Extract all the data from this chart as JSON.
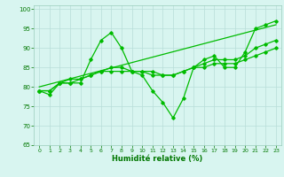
{
  "title": "",
  "xlabel": "Humidité relative (%)",
  "ylabel": "",
  "xlim": [
    -0.5,
    23.5
  ],
  "ylim": [
    65,
    101
  ],
  "yticks": [
    65,
    70,
    75,
    80,
    85,
    90,
    95,
    100
  ],
  "xticks": [
    0,
    1,
    2,
    3,
    4,
    5,
    6,
    7,
    8,
    9,
    10,
    11,
    12,
    13,
    14,
    15,
    16,
    17,
    18,
    19,
    20,
    21,
    22,
    23
  ],
  "background_color": "#d8f5f0",
  "grid_color": "#b8ddd8",
  "line_color": "#00bb00",
  "lines": [
    {
      "x": [
        0,
        1,
        2,
        3,
        4,
        5,
        6,
        7,
        8,
        9,
        10,
        11,
        12,
        13,
        14,
        15,
        16,
        17,
        18,
        19,
        20,
        21,
        22,
        23
      ],
      "y": [
        79,
        78,
        81,
        81,
        81,
        87,
        92,
        94,
        90,
        84,
        83,
        79,
        76,
        72,
        77,
        85,
        87,
        88,
        85,
        85,
        89,
        95,
        96,
        97
      ]
    },
    {
      "x": [
        0,
        1,
        2,
        3,
        4,
        5,
        6,
        7,
        8,
        9,
        10,
        11,
        12,
        13,
        14,
        15,
        16,
        17,
        18,
        19,
        20,
        21,
        22,
        23
      ],
      "y": [
        79,
        79,
        81,
        82,
        82,
        83,
        84,
        84,
        84,
        84,
        84,
        84,
        83,
        83,
        84,
        85,
        86,
        87,
        87,
        87,
        88,
        90,
        91,
        92
      ]
    },
    {
      "x": [
        0,
        1,
        2,
        3,
        4,
        5,
        6,
        7,
        8,
        9,
        10,
        11,
        12,
        13,
        14,
        15,
        16,
        17,
        18,
        19,
        20,
        21,
        22,
        23
      ],
      "y": [
        79,
        79,
        81,
        81,
        82,
        83,
        84,
        85,
        85,
        84,
        84,
        83,
        83,
        83,
        84,
        85,
        85,
        86,
        86,
        86,
        87,
        88,
        89,
        90
      ]
    },
    {
      "x": [
        0,
        23
      ],
      "y": [
        80,
        96
      ]
    }
  ]
}
